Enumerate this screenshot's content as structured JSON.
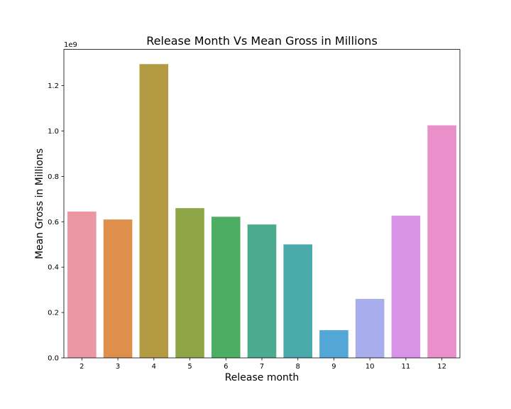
{
  "chart_data": {
    "type": "bar",
    "title": "Release Month Vs Mean Gross in Millions",
    "xlabel": "Release month",
    "ylabel": "Mean Gross in Millions",
    "y_offset_label": "1e9",
    "categories": [
      "2",
      "3",
      "4",
      "5",
      "6",
      "7",
      "8",
      "9",
      "10",
      "11",
      "12"
    ],
    "values": [
      645000000,
      610000000,
      1295000000,
      660000000,
      622000000,
      588000000,
      500000000,
      122000000,
      260000000,
      627000000,
      1025000000
    ],
    "colors": [
      "#ea96a3",
      "#de8f4c",
      "#b39b43",
      "#8fa646",
      "#4bae62",
      "#4aab8f",
      "#4aa9ab",
      "#52a7d6",
      "#a8adec",
      "#d794e7",
      "#e98fca"
    ],
    "ylim": [
      0,
      1360000000
    ],
    "yticks": [
      0,
      200000000,
      400000000,
      600000000,
      800000000,
      1000000000,
      1200000000
    ],
    "ytick_labels": [
      "0.0",
      "0.2",
      "0.4",
      "0.6",
      "0.8",
      "1.0",
      "1.2"
    ],
    "grid": false
  }
}
